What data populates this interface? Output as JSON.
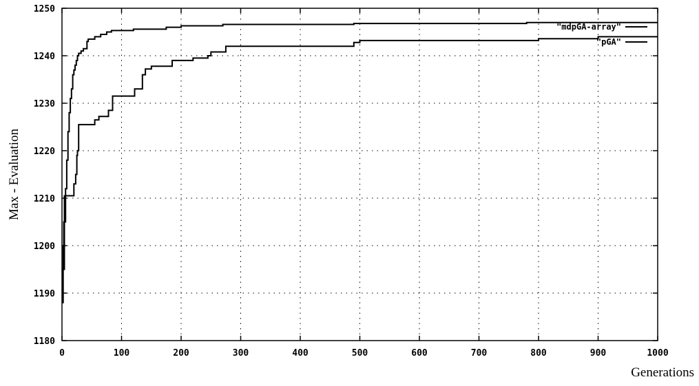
{
  "chart_data": {
    "type": "line",
    "title": "",
    "xlabel": "Generations",
    "ylabel": "Max - Evaluation",
    "xlim": [
      0,
      1000
    ],
    "ylim": [
      1180,
      1250
    ],
    "x_ticks": [
      "0",
      "100",
      "200",
      "300",
      "400",
      "500",
      "600",
      "700",
      "800",
      "900",
      "1000"
    ],
    "y_ticks": [
      "1180",
      "1190",
      "1200",
      "1210",
      "1220",
      "1230",
      "1240",
      "1250"
    ],
    "grid": true,
    "legend_position": "top-right",
    "series": [
      {
        "name": "\"mdpGA-array\"",
        "color": "#000000",
        "step": true,
        "points": [
          [
            0,
            1188
          ],
          [
            2,
            1195
          ],
          [
            4,
            1205
          ],
          [
            6,
            1212
          ],
          [
            8,
            1218
          ],
          [
            10,
            1224
          ],
          [
            12,
            1228
          ],
          [
            14,
            1231
          ],
          [
            16,
            1233
          ],
          [
            18,
            1236
          ],
          [
            20,
            1237
          ],
          [
            22,
            1238
          ],
          [
            24,
            1239
          ],
          [
            26,
            1240
          ],
          [
            28,
            1240.5
          ],
          [
            32,
            1241
          ],
          [
            36,
            1241.5
          ],
          [
            42,
            1243
          ],
          [
            44,
            1243.5
          ],
          [
            55,
            1244
          ],
          [
            65,
            1244.5
          ],
          [
            75,
            1245
          ],
          [
            83,
            1245.3
          ],
          [
            120,
            1245.6
          ],
          [
            175,
            1246
          ],
          [
            200,
            1246.3
          ],
          [
            270,
            1246.6
          ],
          [
            490,
            1246.8
          ],
          [
            780,
            1247
          ],
          [
            1000,
            1247
          ]
        ]
      },
      {
        "name": "\"pGA\"",
        "color": "#000000",
        "step": true,
        "points": [
          [
            0,
            1188
          ],
          [
            1,
            1195
          ],
          [
            2,
            1200
          ],
          [
            3,
            1205
          ],
          [
            4,
            1210.5
          ],
          [
            20,
            1213
          ],
          [
            23,
            1215
          ],
          [
            25,
            1219
          ],
          [
            26,
            1220
          ],
          [
            28,
            1225.5
          ],
          [
            55,
            1226.5
          ],
          [
            62,
            1227.2
          ],
          [
            78,
            1228.5
          ],
          [
            85,
            1231.5
          ],
          [
            122,
            1233
          ],
          [
            135,
            1236
          ],
          [
            140,
            1237.2
          ],
          [
            150,
            1237.8
          ],
          [
            185,
            1239
          ],
          [
            220,
            1239.5
          ],
          [
            245,
            1240
          ],
          [
            250,
            1240.8
          ],
          [
            275,
            1242
          ],
          [
            490,
            1242.8
          ],
          [
            500,
            1243.2
          ],
          [
            800,
            1243.6
          ],
          [
            900,
            1244
          ],
          [
            1000,
            1244
          ]
        ]
      }
    ]
  }
}
